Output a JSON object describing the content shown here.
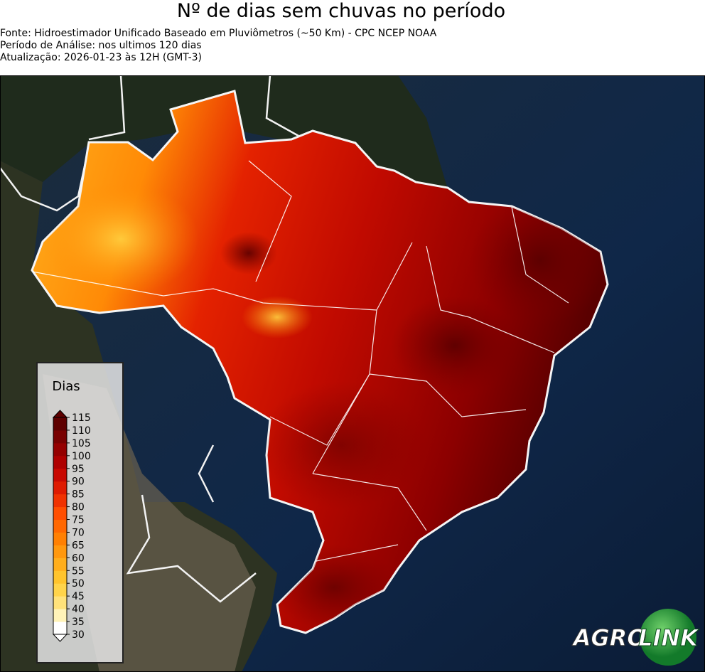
{
  "header": {
    "title": "Nº de dias sem chuvas no período",
    "lines": [
      "Fonte: Hidroestimador Unificado Baseado em Pluviômetros (~50 Km) - CPC NCEP NOAA",
      "Período de Análise: nos ultimos 120 dias",
      "Atualização: 2026-01-23 às 12H (GMT-3)"
    ]
  },
  "legend": {
    "title": "Dias",
    "ticks": [
      30,
      35,
      40,
      45,
      50,
      55,
      60,
      65,
      70,
      75,
      80,
      85,
      90,
      95,
      100,
      105,
      110,
      115
    ],
    "colors": [
      "#ffffff",
      "#fff3b8",
      "#ffe27a",
      "#ffd44a",
      "#ffc42c",
      "#ffae1c",
      "#ff980e",
      "#ff8002",
      "#ff6800",
      "#ff4e00",
      "#f03200",
      "#de1a00",
      "#c80800",
      "#ae0000",
      "#940000",
      "#780000",
      "#5e0000"
    ]
  },
  "logo": {
    "left": "AGRO",
    "right": "LINK"
  }
}
